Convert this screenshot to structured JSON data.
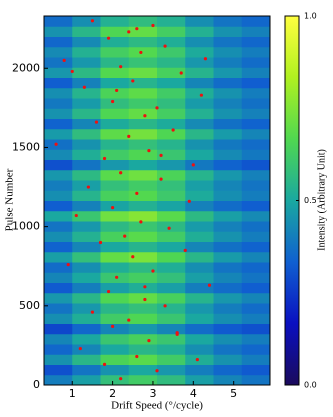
{
  "chart_data": {
    "type": "heatmap",
    "xlabel": "Drift Speed (°/cycle)",
    "ylabel": "Pulse Number",
    "colorbar_label": "Intensity (Arbitrary Unit)",
    "xlim": [
      0.3,
      5.9
    ],
    "ylim": [
      0,
      2330
    ],
    "xticks": [
      1,
      2,
      3,
      4,
      5
    ],
    "yticks": [
      0,
      500,
      1000,
      1500,
      2000
    ],
    "clim": [
      0,
      1
    ],
    "cticks": [
      {
        "value": 0,
        "label": "0.0"
      },
      {
        "value": 0.5,
        "label": "0.5"
      },
      {
        "value": 1,
        "label": "1.0"
      }
    ],
    "colormap": [
      "#1b0a5c",
      "#0a10c0",
      "#1060d0",
      "#1aa8a0",
      "#50d850",
      "#b0f020",
      "#ffff40"
    ],
    "z": [
      [
        0.4,
        0.48,
        0.58,
        0.62,
        0.57,
        0.48,
        0.42,
        0.38
      ],
      [
        0.3,
        0.38,
        0.45,
        0.5,
        0.46,
        0.4,
        0.35,
        0.32
      ],
      [
        0.45,
        0.55,
        0.65,
        0.68,
        0.62,
        0.52,
        0.45,
        0.4
      ],
      [
        0.35,
        0.42,
        0.5,
        0.55,
        0.52,
        0.44,
        0.38,
        0.35
      ],
      [
        0.42,
        0.5,
        0.6,
        0.64,
        0.6,
        0.5,
        0.44,
        0.4
      ],
      [
        0.28,
        0.35,
        0.42,
        0.46,
        0.42,
        0.36,
        0.32,
        0.3
      ],
      [
        0.44,
        0.52,
        0.62,
        0.66,
        0.6,
        0.5,
        0.44,
        0.4
      ],
      [
        0.38,
        0.46,
        0.55,
        0.58,
        0.54,
        0.46,
        0.4,
        0.36
      ],
      [
        0.46,
        0.55,
        0.66,
        0.7,
        0.64,
        0.54,
        0.46,
        0.42
      ],
      [
        0.32,
        0.4,
        0.48,
        0.52,
        0.48,
        0.4,
        0.36,
        0.33
      ],
      [
        0.42,
        0.5,
        0.6,
        0.63,
        0.58,
        0.48,
        0.42,
        0.38
      ],
      [
        0.36,
        0.44,
        0.52,
        0.56,
        0.52,
        0.44,
        0.38,
        0.35
      ],
      [
        0.48,
        0.58,
        0.7,
        0.74,
        0.66,
        0.55,
        0.47,
        0.42
      ],
      [
        0.34,
        0.42,
        0.5,
        0.54,
        0.5,
        0.42,
        0.37,
        0.34
      ],
      [
        0.44,
        0.53,
        0.64,
        0.68,
        0.62,
        0.52,
        0.45,
        0.4
      ],
      [
        0.38,
        0.46,
        0.56,
        0.6,
        0.56,
        0.47,
        0.41,
        0.37
      ],
      [
        0.5,
        0.6,
        0.72,
        0.76,
        0.68,
        0.56,
        0.48,
        0.43
      ],
      [
        0.33,
        0.41,
        0.49,
        0.53,
        0.49,
        0.41,
        0.36,
        0.33
      ],
      [
        0.44,
        0.54,
        0.64,
        0.67,
        0.61,
        0.51,
        0.44,
        0.4
      ],
      [
        0.4,
        0.48,
        0.58,
        0.62,
        0.58,
        0.48,
        0.42,
        0.38
      ],
      [
        0.46,
        0.56,
        0.68,
        0.72,
        0.65,
        0.54,
        0.46,
        0.41
      ],
      [
        0.3,
        0.38,
        0.46,
        0.5,
        0.46,
        0.39,
        0.34,
        0.31
      ],
      [
        0.43,
        0.52,
        0.62,
        0.66,
        0.6,
        0.5,
        0.43,
        0.39
      ],
      [
        0.37,
        0.45,
        0.54,
        0.58,
        0.54,
        0.45,
        0.39,
        0.36
      ],
      [
        0.47,
        0.57,
        0.69,
        0.73,
        0.66,
        0.55,
        0.47,
        0.42
      ],
      [
        0.34,
        0.42,
        0.51,
        0.55,
        0.51,
        0.43,
        0.37,
        0.34
      ],
      [
        0.45,
        0.55,
        0.66,
        0.7,
        0.63,
        0.53,
        0.45,
        0.41
      ],
      [
        0.39,
        0.47,
        0.57,
        0.61,
        0.57,
        0.47,
        0.41,
        0.37
      ],
      [
        0.44,
        0.54,
        0.65,
        0.69,
        0.62,
        0.52,
        0.45,
        0.4
      ],
      [
        0.33,
        0.41,
        0.5,
        0.54,
        0.5,
        0.42,
        0.36,
        0.33
      ],
      [
        0.46,
        0.56,
        0.67,
        0.71,
        0.64,
        0.54,
        0.46,
        0.41
      ],
      [
        0.38,
        0.46,
        0.55,
        0.59,
        0.55,
        0.46,
        0.4,
        0.36
      ],
      [
        0.43,
        0.53,
        0.63,
        0.67,
        0.61,
        0.51,
        0.44,
        0.4
      ],
      [
        0.35,
        0.43,
        0.52,
        0.56,
        0.52,
        0.44,
        0.38,
        0.35
      ],
      [
        0.45,
        0.55,
        0.66,
        0.7,
        0.63,
        0.53,
        0.45,
        0.41
      ],
      [
        0.36,
        0.44,
        0.53,
        0.57,
        0.53,
        0.44,
        0.38,
        0.35
      ]
    ],
    "points": {
      "color": "#ee1111",
      "x": [
        2.2,
        3.1,
        1.8,
        2.6,
        4.1,
        1.2,
        2.9,
        3.6,
        2.0,
        2.4,
        1.5,
        3.3,
        2.8,
        1.9,
        4.4,
        2.1,
        3.0,
        0.9,
        2.5,
        3.8,
        1.7,
        2.3,
        3.4,
        2.7,
        1.1,
        2.0,
        3.9,
        2.6,
        1.4,
        3.2,
        2.2,
        4.0,
        1.8,
        2.9,
        0.6,
        2.4,
        3.5,
        1.6,
        2.8,
        3.1,
        2.0,
        4.2,
        1.3,
        2.5,
        3.7,
        2.2,
        0.8,
        2.7,
        3.3,
        1.9,
        2.4,
        3.0,
        1.5,
        2.6,
        4.3,
        2.1,
        3.2,
        1.0,
        2.8,
        3.6
      ],
      "y": [
        40,
        90,
        130,
        180,
        160,
        230,
        280,
        320,
        370,
        410,
        460,
        500,
        540,
        590,
        630,
        680,
        720,
        760,
        810,
        850,
        900,
        940,
        990,
        1030,
        1070,
        1120,
        1160,
        1210,
        1250,
        1300,
        1340,
        1390,
        1430,
        1480,
        1520,
        1570,
        1610,
        1660,
        1700,
        1750,
        1790,
        1830,
        1880,
        1920,
        1970,
        2010,
        2050,
        2100,
        2140,
        2190,
        2230,
        2270,
        2300,
        2250,
        2060,
        1860,
        1450,
        1980,
        620,
        330
      ]
    }
  }
}
